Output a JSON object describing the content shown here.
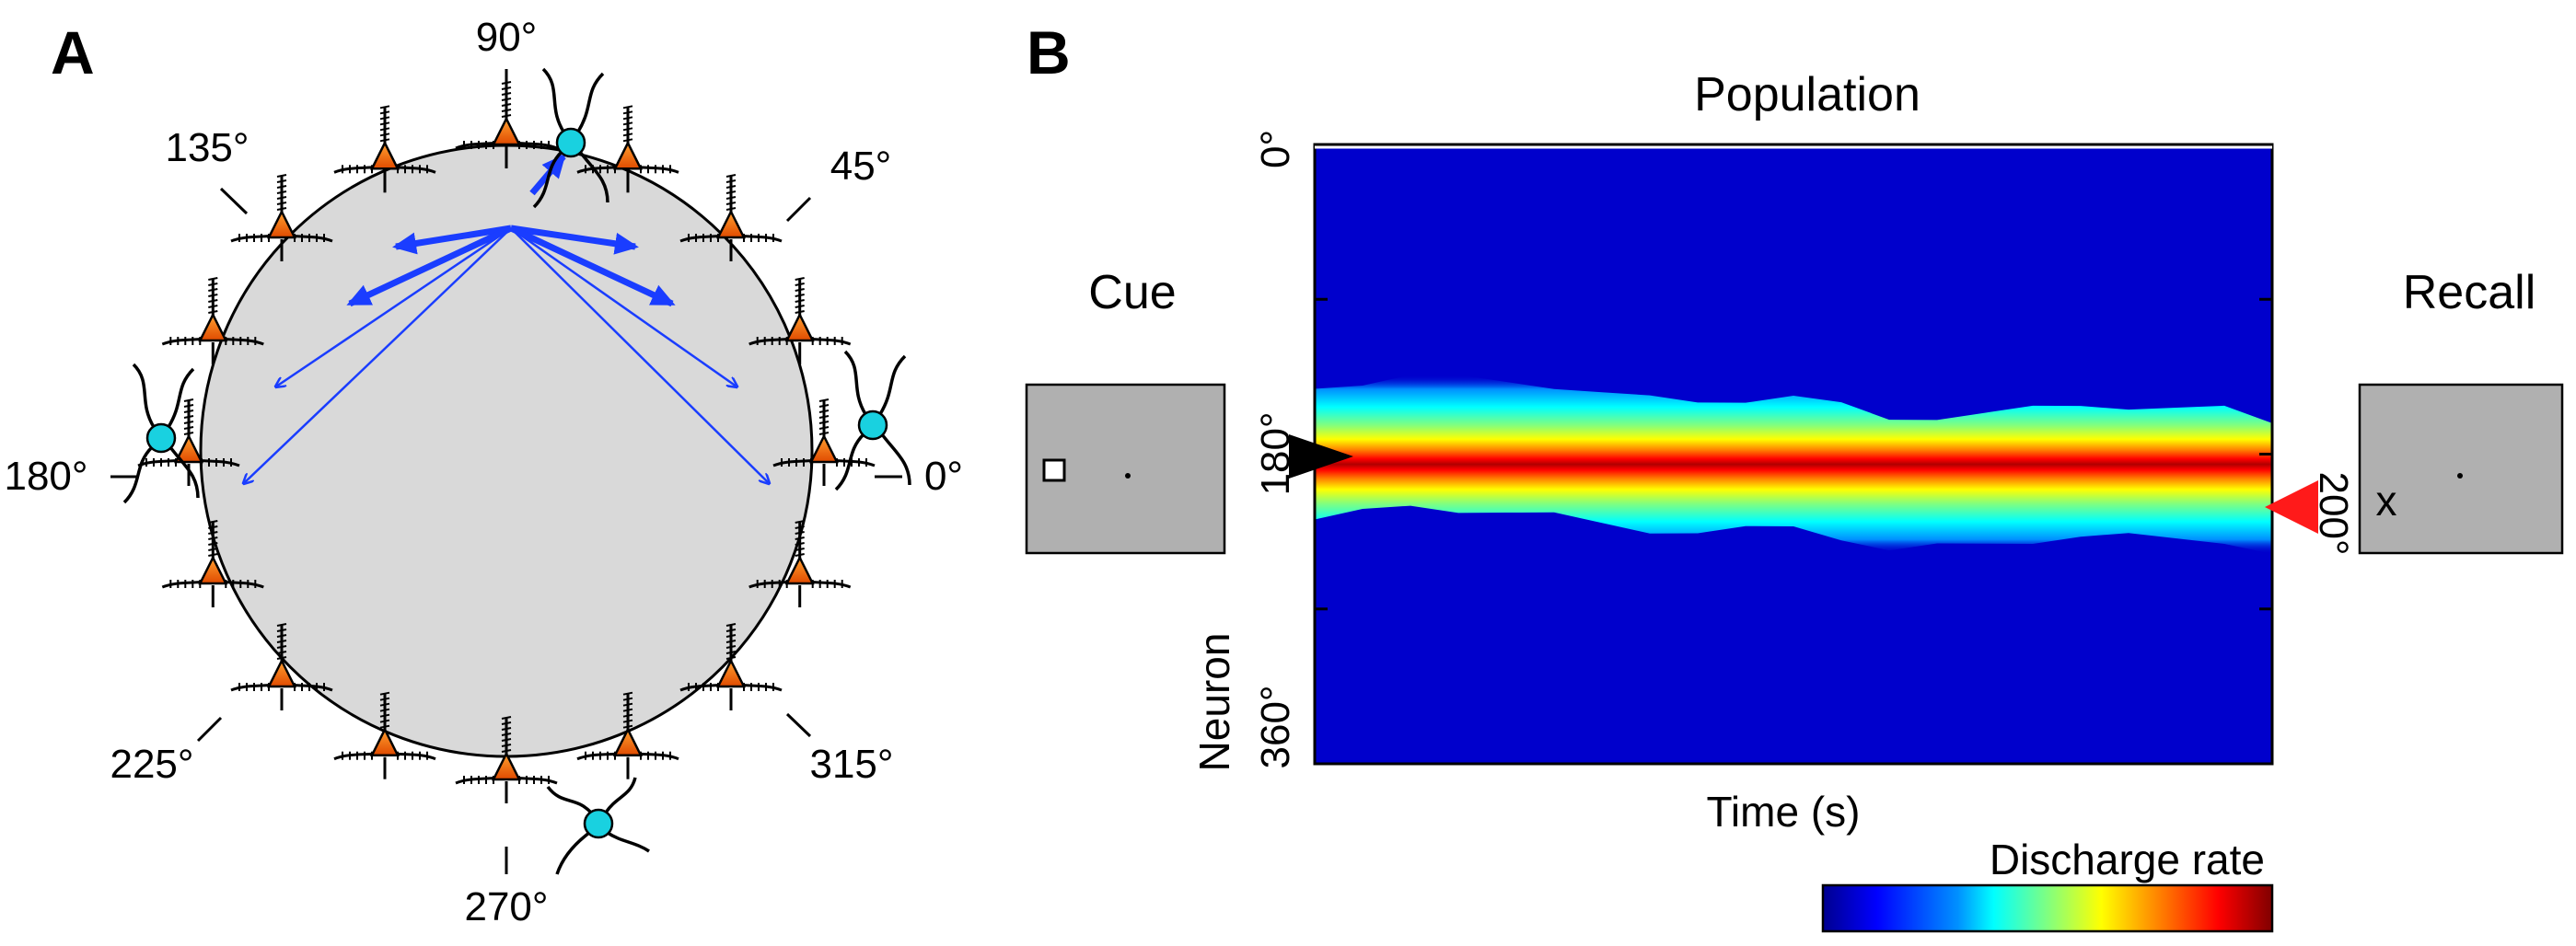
{
  "panel_a": {
    "label": "A",
    "angles": {
      "a0": "0°",
      "a45": "45°",
      "a90": "90°",
      "a135": "135°",
      "a180": "180°",
      "a225": "225°",
      "a270": "270°",
      "a315": "315°"
    },
    "colors": {
      "ring_fill": "#d9d9d9",
      "pyramidal": "#ff6a00",
      "interneuron": "#19d1e0",
      "connection": "#1a3dff"
    }
  },
  "panel_b": {
    "label": "B",
    "title": "Population",
    "cue_label": "Cue",
    "recall_label": "Recall",
    "recall_mark": "x",
    "x_axis_label": "Time (s)",
    "y_axis_label": "Neuron",
    "y_ticks": [
      "0°",
      "180°",
      "360°"
    ],
    "cue_angle": "180°",
    "recall_angle": "200°",
    "colorbar_label": "Discharge rate",
    "colors": {
      "background": "#0000cc",
      "bump_peak": "#b30000",
      "cue_marker": "#000000",
      "recall_marker": "#ff1a1a"
    }
  },
  "chart_data": {
    "type": "heatmap",
    "title": "Population",
    "xlabel": "Time (s)",
    "ylabel": "Neuron",
    "y_range_deg": [
      0,
      360
    ],
    "y_tick_labels": [
      "0°",
      "180°",
      "360°"
    ],
    "time_normalized": [
      0.0,
      0.05,
      0.1,
      0.15,
      0.2,
      0.25,
      0.3,
      0.35,
      0.4,
      0.45,
      0.5,
      0.55,
      0.6,
      0.65,
      0.7,
      0.75,
      0.8,
      0.85,
      0.9,
      0.95,
      1.0
    ],
    "bump_center_deg": [
      180,
      176,
      172,
      174,
      176,
      178,
      182,
      186,
      188,
      186,
      184,
      190,
      198,
      196,
      194,
      192,
      190,
      190,
      191,
      192,
      200
    ],
    "bump_half_width_deg": 38,
    "cue_deg": 180,
    "recall_deg": 200,
    "colorbar": "Discharge rate"
  }
}
